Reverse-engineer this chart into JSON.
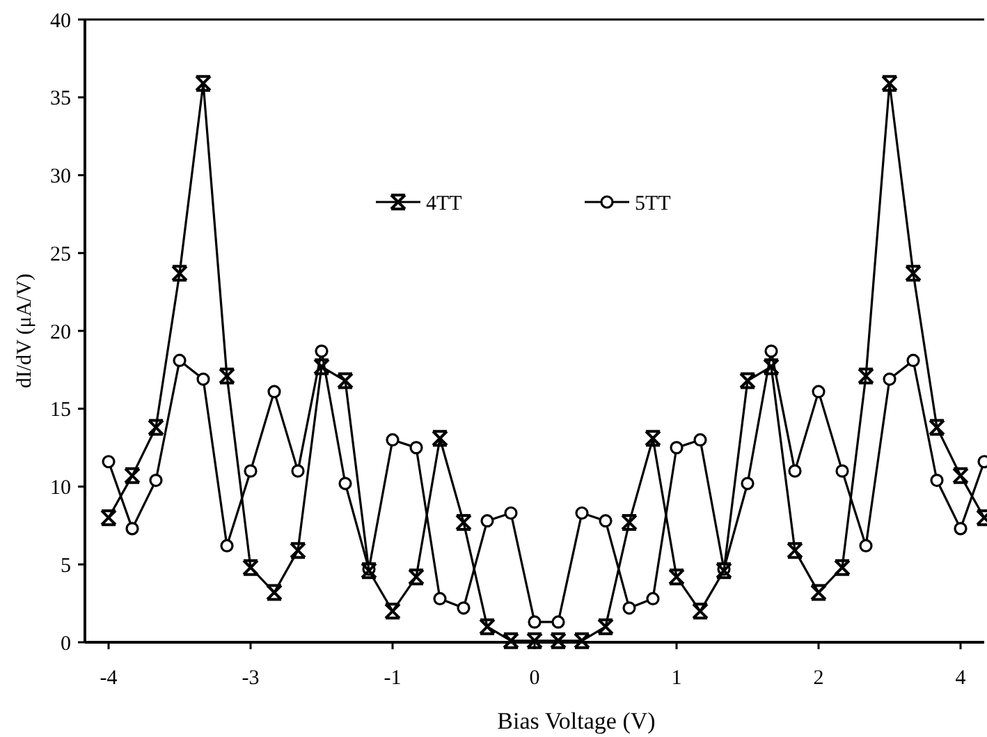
{
  "chart_data": {
    "type": "line",
    "xlabel": "Bias Voltage  (V)",
    "ylabel": "dI/dV (μA/V)",
    "categories": [
      "-4",
      null,
      null,
      null,
      null,
      null,
      "-3",
      null,
      null,
      null,
      null,
      null,
      "-1",
      null,
      null,
      null,
      null,
      null,
      "0",
      null,
      null,
      null,
      null,
      null,
      "1",
      null,
      null,
      null,
      null,
      null,
      "2",
      null,
      null,
      null,
      null,
      null,
      "4",
      null
    ],
    "series": [
      {
        "name": "4TT",
        "color": "#000000",
        "marker": "cross",
        "values": [
          8.0,
          10.7,
          13.8,
          23.7,
          35.9,
          17.1,
          4.8,
          3.2,
          5.9,
          17.7,
          16.8,
          4.6,
          2.0,
          4.2,
          13.1,
          7.7,
          1.0,
          0.1,
          0.1,
          0.1,
          0.1,
          1.0,
          7.7,
          13.1,
          4.2,
          2.0,
          4.6,
          16.8,
          17.7,
          5.9,
          3.2,
          4.8,
          17.1,
          35.9,
          23.7,
          13.8,
          10.7,
          8.0
        ]
      },
      {
        "name": "5TT",
        "color": "#000000",
        "marker": "circle",
        "values": [
          11.6,
          7.3,
          10.4,
          18.1,
          16.9,
          6.2,
          11.0,
          16.1,
          11.0,
          18.7,
          10.2,
          4.7,
          13.0,
          12.5,
          2.8,
          2.2,
          7.8,
          8.3,
          1.3,
          1.3,
          8.3,
          7.8,
          2.2,
          2.8,
          12.5,
          13.0,
          4.7,
          10.2,
          18.7,
          11.0,
          16.1,
          11.0,
          6.2,
          16.9,
          18.1,
          10.4,
          7.3,
          11.6
        ]
      }
    ],
    "ylim": [
      0,
      40
    ],
    "yticks": [
      0,
      5,
      10,
      15,
      20,
      25,
      30,
      35,
      40
    ],
    "grid": false,
    "legend": "top",
    "line_style": "solid"
  }
}
